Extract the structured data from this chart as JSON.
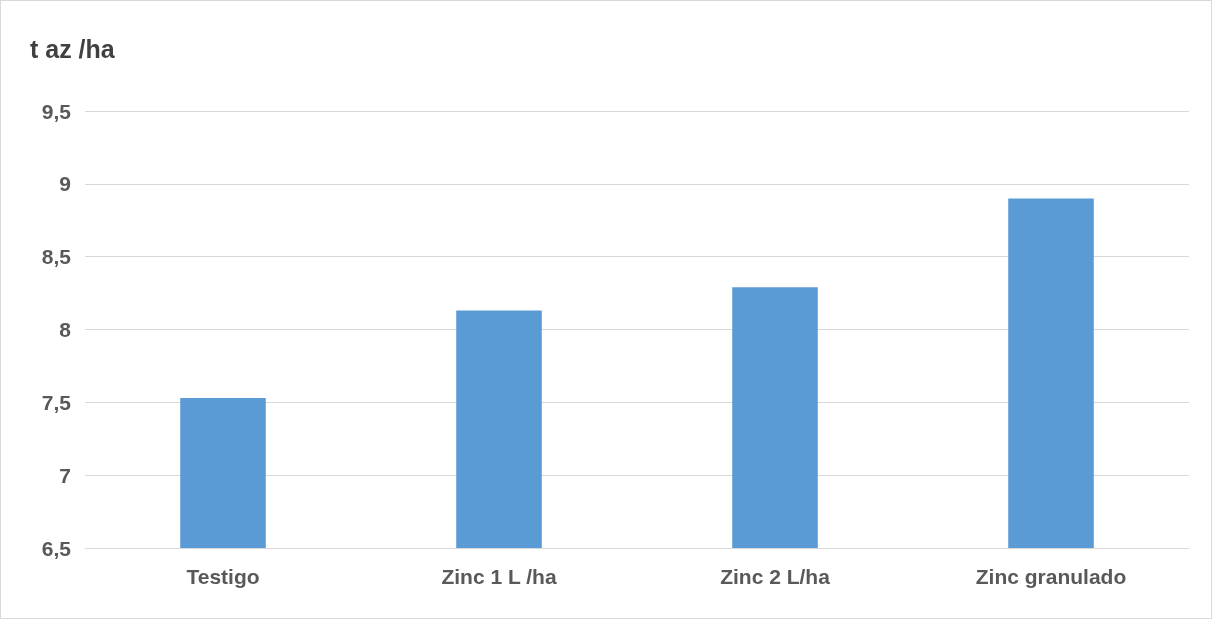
{
  "chart_data": {
    "type": "bar",
    "ylabel": "t az /ha",
    "categories": [
      "Testigo",
      "Zinc 1 L /ha",
      "Zinc 2 L/ha",
      "Zinc granulado"
    ],
    "values": [
      7.53,
      8.13,
      8.29,
      8.9
    ],
    "color": "#5b9bd5",
    "ylim": [
      6.5,
      9.5
    ],
    "yticks": [
      {
        "value": 6.5,
        "label": "6,5"
      },
      7,
      {
        "value": 7.5,
        "label": "7,5"
      },
      8,
      {
        "value": 8.5,
        "label": "8,5"
      },
      9,
      {
        "value": 9.5,
        "label": "9,5"
      }
    ],
    "grid": "y"
  }
}
